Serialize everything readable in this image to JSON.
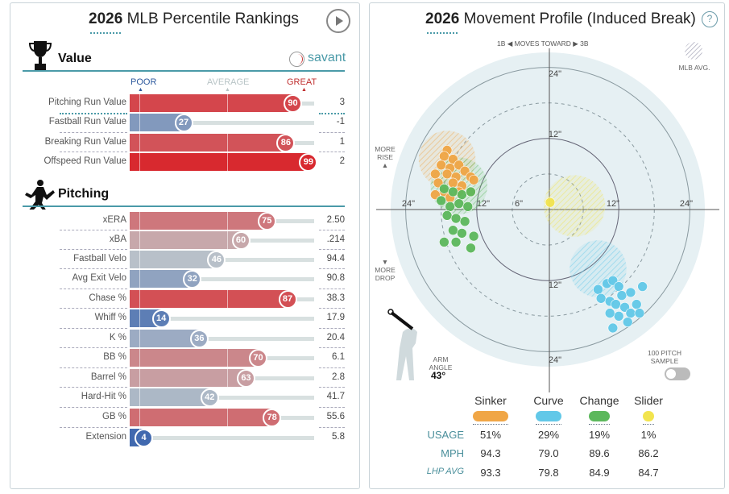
{
  "left": {
    "title_year": "2026",
    "title_rest": "MLB Percentile Rankings",
    "play_icon": "play-icon",
    "value_section": "Value",
    "savant_label": "savant",
    "scale": {
      "poor": "POOR",
      "average": "AVERAGE",
      "great": "GREAT"
    },
    "value_rows": [
      {
        "label": "Pitching Run Value",
        "percentile": 90,
        "value": "3"
      },
      {
        "label": "Fastball Run Value",
        "percentile": 27,
        "value": "-1"
      },
      {
        "label": "Breaking Run Value",
        "percentile": 86,
        "value": "1"
      },
      {
        "label": "Offspeed Run Value",
        "percentile": 99,
        "value": "2"
      }
    ],
    "pitching_section": "Pitching",
    "pitching_rows": [
      {
        "label": "xERA",
        "percentile": 75,
        "value": "2.50"
      },
      {
        "label": "xBA",
        "percentile": 60,
        "value": ".214"
      },
      {
        "label": "Fastball Velo",
        "percentile": 46,
        "value": "94.4"
      },
      {
        "label": "Avg Exit Velo",
        "percentile": 32,
        "value": "90.8"
      },
      {
        "label": "Chase %",
        "percentile": 87,
        "value": "38.3"
      },
      {
        "label": "Whiff %",
        "percentile": 14,
        "value": "17.9"
      },
      {
        "label": "K %",
        "percentile": 36,
        "value": "20.4"
      },
      {
        "label": "BB %",
        "percentile": 70,
        "value": "6.1"
      },
      {
        "label": "Barrel %",
        "percentile": 63,
        "value": "2.8"
      },
      {
        "label": "Hard-Hit %",
        "percentile": 42,
        "value": "41.7"
      },
      {
        "label": "GB %",
        "percentile": 78,
        "value": "55.6"
      },
      {
        "label": "Extension",
        "percentile": 4,
        "value": "5.8"
      }
    ],
    "colors": {
      "poor": "#3661ad",
      "average": "#c3c8cb",
      "great": "#d8262c",
      "accent": "#4a9aa8"
    }
  },
  "right": {
    "title_year": "2026",
    "title_rest": "Movement Profile (Induced Break)",
    "help_icon": "question-icon",
    "moves_toward": {
      "left": "1B",
      "text": "MOVES TOWARD",
      "right": "3B"
    },
    "mlb_avg_label": "MLB AVG.",
    "more_rise": [
      "MORE",
      "RISE"
    ],
    "more_drop": [
      "MORE",
      "DROP"
    ],
    "ring_labels": {
      "r24": "24\"",
      "r12": "12\"",
      "r6": "6\""
    },
    "arm_angle_label": [
      "ARM",
      "ANGLE"
    ],
    "arm_angle_value": "43°",
    "sample_label": [
      "100 PITCH",
      "SAMPLE"
    ],
    "sample_toggle_on": false,
    "table": {
      "row_labels": {
        "usage": "USAGE",
        "mph": "MPH",
        "lhp_avg": "LHP AVG"
      },
      "pitches": [
        {
          "name": "Sinker",
          "color": "#f0a646",
          "usage": "51%",
          "mph": "94.3",
          "lhp_avg": "93.3"
        },
        {
          "name": "Curve",
          "color": "#62c8e8",
          "usage": "29%",
          "mph": "79.0",
          "lhp_avg": "79.8"
        },
        {
          "name": "Change",
          "color": "#5cb85c",
          "usage": "19%",
          "mph": "89.6",
          "lhp_avg": "84.9"
        },
        {
          "name": "Slider",
          "color": "#f2e44e",
          "usage": "1%",
          "mph": "86.2",
          "lhp_avg": "84.7"
        }
      ]
    },
    "chart_data": {
      "type": "scatter",
      "xlabel": "",
      "ylabel": "",
      "xlim": [
        -24,
        24
      ],
      "ylim": [
        -24,
        24
      ],
      "mlb_avg": [
        {
          "pitch": "Sinker",
          "x": -17,
          "z": 8.5,
          "r": 4.8
        },
        {
          "pitch": "Change",
          "x": -15,
          "z": 4,
          "r": 4.8
        },
        {
          "pitch": "Slider",
          "x": 4.5,
          "z": 0.6,
          "r": 5.2
        },
        {
          "pitch": "Curve",
          "x": 8.5,
          "z": -10,
          "r": 4.8
        }
      ],
      "series": [
        {
          "name": "Sinker",
          "points": [
            [
              -17,
              10
            ],
            [
              -17.5,
              9
            ],
            [
              -16,
              8.5
            ],
            [
              -18,
              7.5
            ],
            [
              -16.5,
              7
            ],
            [
              -15,
              7.5
            ],
            [
              -14,
              6.5
            ],
            [
              -19,
              6
            ],
            [
              -17,
              6
            ],
            [
              -15.5,
              5.5
            ],
            [
              -13,
              5.5
            ],
            [
              -18.5,
              4.5
            ],
            [
              -16,
              4.5
            ],
            [
              -14.5,
              4
            ],
            [
              -12.5,
              5
            ],
            [
              -17.5,
              3
            ],
            [
              -15,
              3
            ],
            [
              -13,
              3
            ],
            [
              -19,
              2.5
            ],
            [
              -16.5,
              2
            ]
          ]
        },
        {
          "name": "Change",
          "points": [
            [
              -17.5,
              3.5
            ],
            [
              -16,
              3
            ],
            [
              -14.5,
              2.5
            ],
            [
              -13,
              3
            ],
            [
              -18,
              1.5
            ],
            [
              -16.5,
              0.5
            ],
            [
              -15,
              1
            ],
            [
              -13.5,
              0.5
            ],
            [
              -17,
              -1
            ],
            [
              -15.5,
              -1.5
            ],
            [
              -14,
              -2
            ],
            [
              -16,
              -3.5
            ],
            [
              -14.5,
              -4
            ],
            [
              -12.5,
              -4.5
            ],
            [
              -17.5,
              -5.5
            ],
            [
              -15.5,
              -5.5
            ],
            [
              -13,
              -6.5
            ]
          ]
        },
        {
          "name": "Curve",
          "points": [
            [
              8.5,
              -13.5
            ],
            [
              10,
              -12.5
            ],
            [
              11,
              -12
            ],
            [
              12,
              -13
            ],
            [
              9,
              -15
            ],
            [
              10.5,
              -15.5
            ],
            [
              12.5,
              -14.5
            ],
            [
              14,
              -14
            ],
            [
              16,
              -13
            ],
            [
              11.5,
              -16
            ],
            [
              13,
              -16.5
            ],
            [
              15,
              -16
            ],
            [
              14,
              -17.5
            ],
            [
              12,
              -18
            ],
            [
              10.5,
              -17.5
            ],
            [
              13.5,
              -19
            ],
            [
              11,
              -20
            ],
            [
              15.5,
              -17.5
            ]
          ]
        },
        {
          "name": "Slider",
          "points": [
            [
              0.4,
              1.2
            ]
          ]
        }
      ]
    }
  }
}
